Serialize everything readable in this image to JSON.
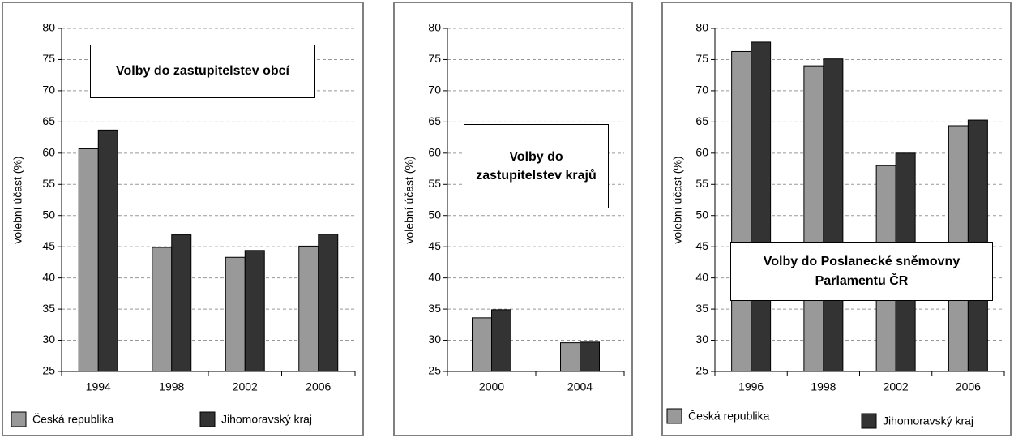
{
  "chart_data": [
    {
      "type": "bar",
      "title": "Volby do zastupitelstev obcí",
      "y_label": "volební účast (%)",
      "categories": [
        "1994",
        "1998",
        "2002",
        "2006"
      ],
      "series": [
        {
          "name": "Česká republika",
          "color": "#999999",
          "values": [
            60.7,
            44.9,
            43.3,
            45.1
          ]
        },
        {
          "name": "Jihomoravský kraj",
          "color": "#333333",
          "values": [
            63.7,
            46.9,
            44.4,
            47.0
          ]
        }
      ],
      "ylim": [
        25,
        80
      ],
      "yticks": [
        25,
        30,
        35,
        40,
        45,
        50,
        55,
        60,
        65,
        70,
        75,
        80
      ],
      "grid": true,
      "legend": true
    },
    {
      "type": "bar",
      "title": "Volby do zastupitelstev krajů",
      "y_label": "volební účast (%)",
      "categories": [
        "2000",
        "2004"
      ],
      "series": [
        {
          "name": "Česká republika",
          "color": "#999999",
          "values": [
            33.6,
            29.6
          ]
        },
        {
          "name": "Jihomoravský kraj",
          "color": "#333333",
          "values": [
            34.9,
            29.7
          ]
        }
      ],
      "ylim": [
        25,
        80
      ],
      "yticks": [
        25,
        30,
        35,
        40,
        45,
        50,
        55,
        60,
        65,
        70,
        75,
        80
      ],
      "grid": true,
      "legend": false
    },
    {
      "type": "bar",
      "title": "Volby do Poslanecké sněmovny Parlamentu ČR",
      "y_label": "volební účast (%)",
      "categories": [
        "1996",
        "1998",
        "2002",
        "2006"
      ],
      "series": [
        {
          "name": "Česká republika",
          "color": "#999999",
          "values": [
            76.3,
            74.0,
            58.0,
            64.4
          ]
        },
        {
          "name": "Jihomoravský kraj",
          "color": "#333333",
          "values": [
            77.8,
            75.1,
            60.0,
            65.3
          ]
        }
      ],
      "ylim": [
        25,
        80
      ],
      "yticks": [
        25,
        30,
        35,
        40,
        45,
        50,
        55,
        60,
        65,
        70,
        75,
        80
      ],
      "grid": true,
      "legend": true
    }
  ]
}
